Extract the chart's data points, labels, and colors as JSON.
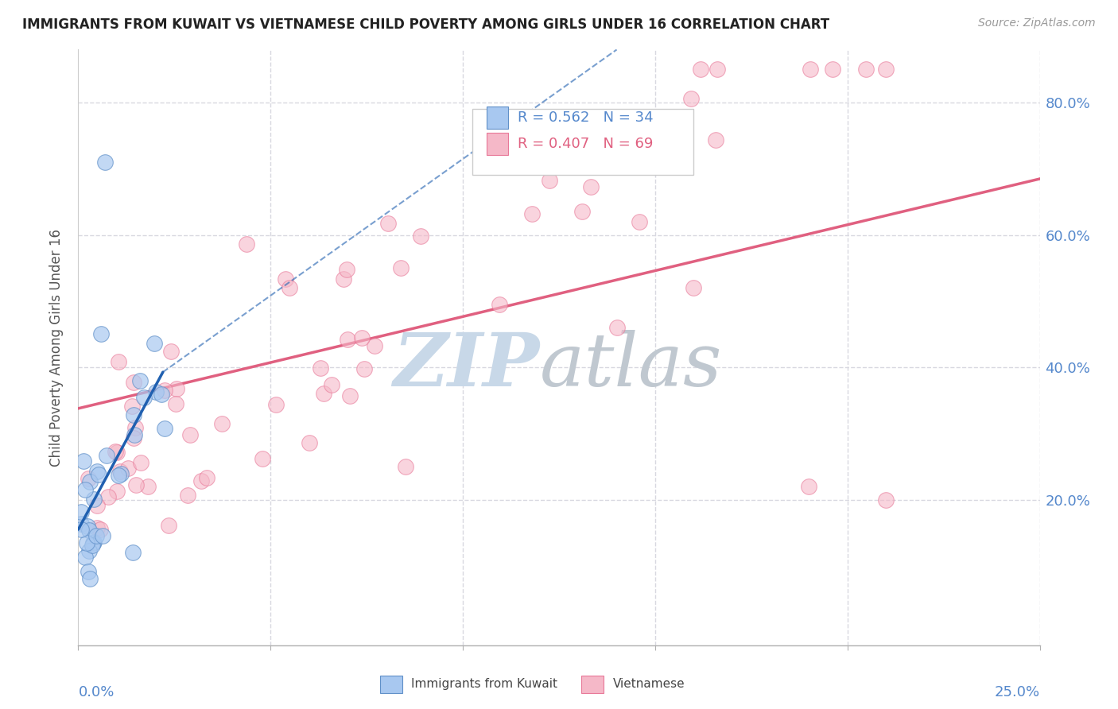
{
  "title": "IMMIGRANTS FROM KUWAIT VS VIETNAMESE CHILD POVERTY AMONG GIRLS UNDER 16 CORRELATION CHART",
  "source": "Source: ZipAtlas.com",
  "ylabel": "Child Poverty Among Girls Under 16",
  "xlim": [
    0,
    0.25
  ],
  "ylim": [
    -0.02,
    0.88
  ],
  "ytick_values": [
    0.2,
    0.4,
    0.6,
    0.8
  ],
  "ytick_labels": [
    "20.0%",
    "40.0%",
    "60.0%",
    "80.0%"
  ],
  "legend1_text": "R = 0.562   N = 34",
  "legend2_text": "R = 0.407   N = 69",
  "series1_color": "#a8c8f0",
  "series2_color": "#f5b8c8",
  "series1_edge": "#6090c8",
  "series2_edge": "#e87898",
  "trendline1_color": "#2060b0",
  "trendline2_color": "#e06080",
  "series1_name": "Immigrants from Kuwait",
  "series2_name": "Vietnamese",
  "background_color": "#ffffff",
  "grid_color": "#d8d8e0",
  "watermark_zip_color": "#c8d8e8",
  "watermark_atlas_color": "#c0c8d0",
  "title_color": "#222222",
  "source_color": "#999999",
  "tick_color": "#5588cc",
  "ylabel_color": "#555555"
}
